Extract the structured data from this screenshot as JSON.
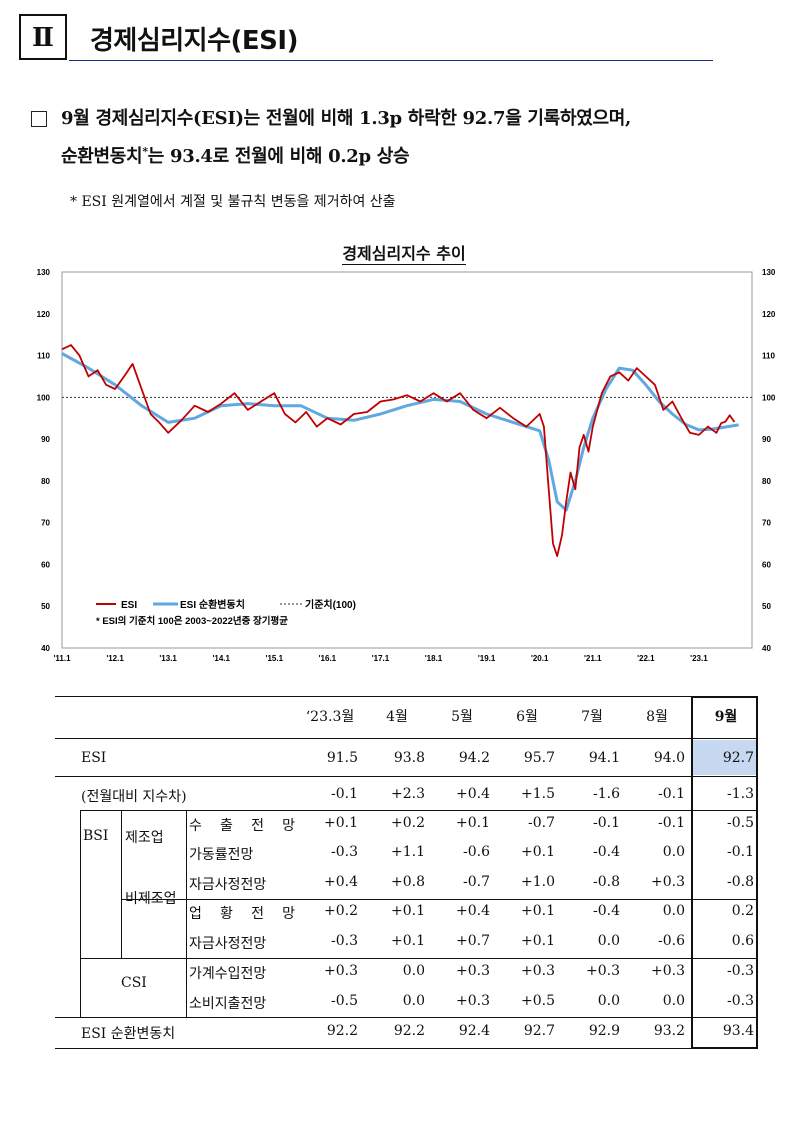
{
  "section": {
    "roman": "Ⅱ",
    "title": "경제심리지수(ESI)"
  },
  "summary": {
    "line1": "9월 경제심리지수(ESI)는 전월에 비해 1.3p 하락한 92.7을 기록하였으며,",
    "line2a": "순환변동치",
    "line2sup": "*",
    "line2b": "는 93.4로 전월에 비해 0.2p 상승",
    "footnote": "*  ESI 원계열에서 계절 및 불규칙 변동을 제거하여 산출"
  },
  "chart_title": "경제심리지수 추이",
  "chart_data": {
    "type": "line",
    "y_ticks": [
      130,
      120,
      110,
      100,
      90,
      80,
      70,
      60,
      50,
      40
    ],
    "ylim": [
      40,
      130
    ],
    "x_ticks": [
      "'11.1",
      "'12.1",
      "'13.1",
      "'14.1",
      "'15.1",
      "'16.1",
      "'17.1",
      "'18.1",
      "'19.1",
      "'20.1",
      "'21.1",
      "'22.1",
      "'23.1"
    ],
    "legend": {
      "esi": "ESI",
      "cycle": "ESI 순환변동치",
      "base": "기준치(100)"
    },
    "legend_note": "* ESI의 기준치 100은 2003~2022년중 장기평균",
    "base_value": 100,
    "series": [
      {
        "name": "ESI",
        "color": "#c00000",
        "x": [
          2011.0,
          2011.17,
          2011.33,
          2011.5,
          2011.67,
          2011.83,
          2012.0,
          2012.17,
          2012.33,
          2012.5,
          2012.67,
          2012.83,
          2013.0,
          2013.25,
          2013.5,
          2013.75,
          2014.0,
          2014.25,
          2014.5,
          2014.75,
          2015.0,
          2015.2,
          2015.4,
          2015.6,
          2015.8,
          2016.0,
          2016.25,
          2016.5,
          2016.75,
          2017.0,
          2017.25,
          2017.5,
          2017.75,
          2018.0,
          2018.25,
          2018.5,
          2018.75,
          2019.0,
          2019.25,
          2019.5,
          2019.75,
          2020.0,
          2020.08,
          2020.17,
          2020.25,
          2020.33,
          2020.42,
          2020.5,
          2020.58,
          2020.67,
          2020.75,
          2020.83,
          2020.92,
          2021.0,
          2021.17,
          2021.33,
          2021.5,
          2021.67,
          2021.83,
          2022.0,
          2022.17,
          2022.33,
          2022.5,
          2022.67,
          2022.83,
          2023.0,
          2023.17,
          2023.33,
          2023.42,
          2023.5,
          2023.58,
          2023.67
        ],
        "y": [
          111.5,
          112.5,
          110,
          105,
          106.5,
          103,
          102,
          105,
          108,
          102,
          96,
          94,
          91.5,
          94.5,
          98,
          96.5,
          98.5,
          101,
          97,
          99,
          101,
          96,
          94,
          96.5,
          93,
          95,
          93.5,
          96,
          96.5,
          99,
          99.5,
          100.5,
          99,
          101,
          99,
          101,
          97,
          95,
          97.5,
          95,
          93,
          96,
          93,
          78,
          65,
          62,
          67,
          75,
          82,
          78,
          88,
          91,
          87,
          93,
          101,
          105,
          106,
          104,
          107,
          105,
          103,
          97,
          99,
          95,
          91.5,
          91,
          93,
          91.5,
          93.8,
          94.2,
          95.7,
          94.1
        ]
      },
      {
        "name": "ESI 순환변동치",
        "color": "#5fa8e0",
        "x": [
          2011.0,
          2011.5,
          2012.0,
          2012.5,
          2013.0,
          2013.5,
          2014.0,
          2014.5,
          2015.0,
          2015.5,
          2016.0,
          2016.5,
          2017.0,
          2017.5,
          2018.0,
          2018.5,
          2019.0,
          2019.5,
          2020.0,
          2020.17,
          2020.33,
          2020.5,
          2020.67,
          2020.83,
          2021.0,
          2021.25,
          2021.5,
          2021.75,
          2022.0,
          2022.25,
          2022.5,
          2022.75,
          2023.0,
          2023.25,
          2023.5,
          2023.75
        ],
        "y": [
          110.5,
          107,
          103,
          98,
          94,
          95,
          98,
          98.5,
          98,
          98,
          95,
          94.5,
          96,
          98,
          99.5,
          99,
          96,
          94,
          92,
          85,
          75,
          73,
          80,
          88,
          95,
          102,
          107,
          106.5,
          103,
          99,
          96,
          93.5,
          92.2,
          92.4,
          92.9,
          93.4
        ]
      }
    ]
  },
  "table": {
    "headers": [
      "‘23.3월",
      "4월",
      "5월",
      "6월",
      "7월",
      "8월",
      "9월"
    ],
    "rows": [
      {
        "label": "ESI",
        "values": [
          "91.5",
          "93.8",
          "94.2",
          "95.7",
          "94.1",
          "94.0",
          "92.7"
        ]
      },
      {
        "label": "(전월대비 지수차)",
        "values": [
          "-0.1",
          "+2.3",
          "+0.4",
          "+1.5",
          "-1.6",
          "-0.1",
          "-1.3"
        ]
      },
      {
        "group": "BSI",
        "sub": "제조업",
        "label": "수 출 전 망",
        "values": [
          "+0.1",
          "+0.2",
          "+0.1",
          "-0.7",
          "-0.1",
          "-0.1",
          "-0.5"
        ]
      },
      {
        "label": "가동률전망",
        "values": [
          "-0.3",
          "+1.1",
          "-0.6",
          "+0.1",
          "-0.4",
          "0.0",
          "-0.1"
        ]
      },
      {
        "label": "자금사정전망",
        "values": [
          "+0.4",
          "+0.8",
          "-0.7",
          "+1.0",
          "-0.8",
          "+0.3",
          "-0.8"
        ]
      },
      {
        "sub": "비제조업",
        "label": "업 황 전 망",
        "values": [
          "+0.2",
          "+0.1",
          "+0.4",
          "+0.1",
          "-0.4",
          "0.0",
          "0.2"
        ]
      },
      {
        "label": "자금사정전망",
        "values": [
          "-0.3",
          "+0.1",
          "+0.7",
          "+0.1",
          "0.0",
          "-0.6",
          "0.6"
        ]
      },
      {
        "group": "CSI",
        "label": "가계수입전망",
        "values": [
          "+0.3",
          "0.0",
          "+0.3",
          "+0.3",
          "+0.3",
          "+0.3",
          "-0.3"
        ]
      },
      {
        "label": "소비지출전망",
        "values": [
          "-0.5",
          "0.0",
          "+0.3",
          "+0.5",
          "0.0",
          "0.0",
          "-0.3"
        ]
      },
      {
        "label": "ESI 순환변동치",
        "values": [
          "92.2",
          "92.2",
          "92.4",
          "92.7",
          "92.9",
          "93.2",
          "93.4"
        ]
      }
    ]
  }
}
